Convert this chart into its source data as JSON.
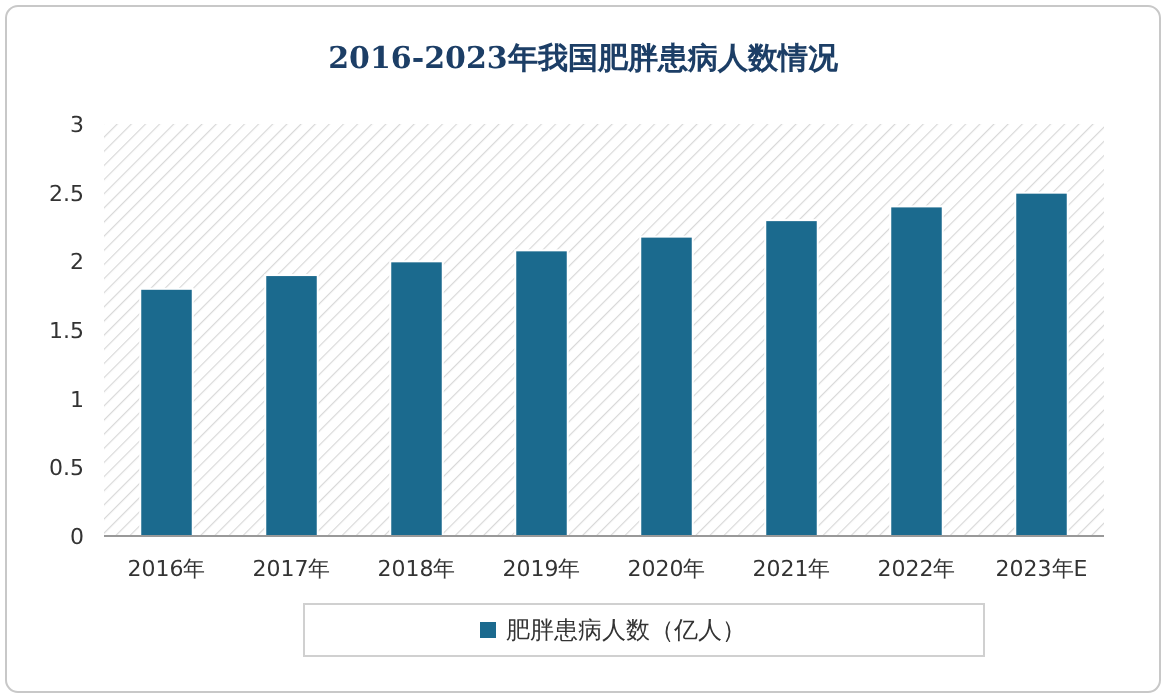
{
  "chart_data": {
    "type": "bar",
    "title": "2016-2023年我国肥胖患病人数情况",
    "categories": [
      "2016年",
      "2017年",
      "2018年",
      "2019年",
      "2020年",
      "2021年",
      "2022年",
      "2023年E"
    ],
    "series": [
      {
        "name": "肥胖患病人数（亿人）",
        "color": "#1b6a8e",
        "values": [
          1.8,
          1.9,
          2.0,
          2.08,
          2.18,
          2.3,
          2.4,
          2.5
        ]
      }
    ],
    "ylim": [
      0,
      3
    ],
    "yticks": [
      0,
      0.5,
      1,
      1.5,
      2,
      2.5,
      3
    ],
    "grid": false,
    "legend": "bottom"
  }
}
